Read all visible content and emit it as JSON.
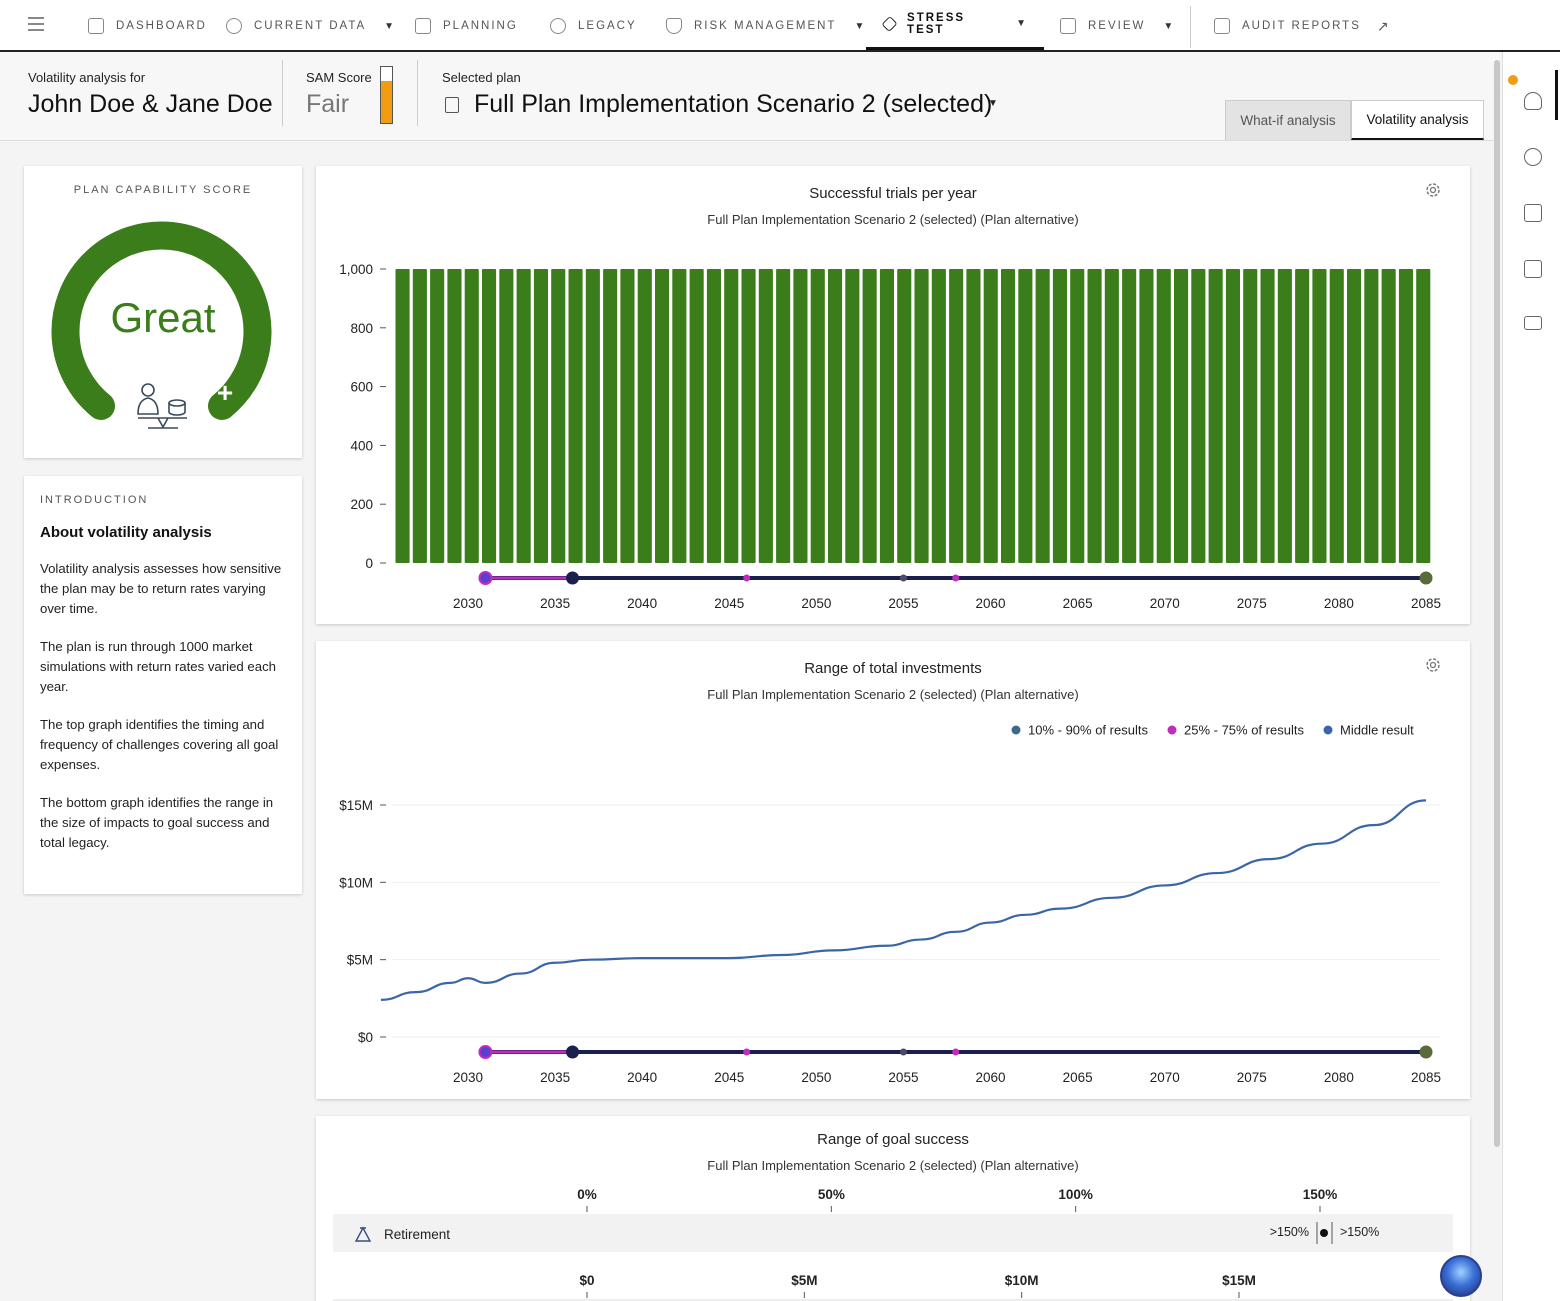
{
  "nav": {
    "items": [
      {
        "label": "DASHBOARD",
        "icon": "dashboard-icon",
        "caret": false
      },
      {
        "label": "CURRENT DATA",
        "icon": "people-icon",
        "caret": true
      },
      {
        "label": "PLANNING",
        "icon": "planning-icon",
        "caret": false
      },
      {
        "label": "LEGACY",
        "icon": "legacy-icon",
        "caret": false
      },
      {
        "label": "RISK MANAGEMENT",
        "icon": "shield-icon",
        "caret": true
      },
      {
        "label": "STRESS TEST",
        "icon": "diamond-icon",
        "caret": true,
        "active": true
      },
      {
        "label": "REVIEW",
        "icon": "review-icon",
        "caret": true
      },
      {
        "label": "AUDIT REPORTS",
        "icon": "audit-icon",
        "caret": false,
        "external": true
      }
    ]
  },
  "header": {
    "for_label": "Volatility analysis for",
    "client_name": "John Doe & Jane Doe",
    "sam_label": "SAM Score",
    "sam_value": "Fair",
    "sam_level": 0.75,
    "plan_label": "Selected plan",
    "plan_name": "Full Plan Implementation Scenario 2 (selected)",
    "tabs": [
      {
        "label": "What-if analysis",
        "active": false
      },
      {
        "label": "Volatility analysis",
        "active": true
      }
    ]
  },
  "score_card": {
    "eyebrow": "PLAN CAPABILITY SCORE",
    "score": "Great",
    "plus": "+",
    "color": "#3a7d1a"
  },
  "intro": {
    "eyebrow": "INTRODUCTION",
    "title": "About volatility analysis",
    "paragraphs": [
      "Volatility analysis assesses how sensitive the plan may be to return rates varying over time.",
      "The plan is run through 1000 market simulations with return rates varied each year.",
      "The top graph identifies the timing and frequency of challenges covering all goal expenses.",
      "The bottom graph identifies the range in the size of impacts to goal success and total legacy."
    ]
  },
  "chart_data": [
    {
      "type": "bar",
      "title": "Successful trials per year",
      "subtitle": "Full Plan Implementation Scenario 2 (selected) (Plan alternative)",
      "x_start": 2026,
      "x_end": 2085,
      "values_all": 1000,
      "ylim": [
        0,
        1000
      ],
      "yticks": [
        "0",
        "200",
        "400",
        "600",
        "800",
        "1,000"
      ],
      "xticks": [
        "2030",
        "2035",
        "2040",
        "2045",
        "2050",
        "2055",
        "2060",
        "2065",
        "2070",
        "2075",
        "2080",
        "2085"
      ],
      "color": "#3a7d1a"
    },
    {
      "type": "line",
      "title": "Range of total investments",
      "subtitle": "Full Plan Implementation Scenario 2 (selected) (Plan alternative)",
      "legend": [
        "10% - 90% of results",
        "25% - 75% of results",
        "Middle result"
      ],
      "legend_colors": [
        "#3d6b87",
        "#c02cc0",
        "#3a66a8"
      ],
      "yticks": [
        "$0",
        "$5M",
        "$10M",
        "$15M"
      ],
      "ylim": [
        0,
        15
      ],
      "xticks": [
        "2030",
        "2035",
        "2040",
        "2045",
        "2050",
        "2055",
        "2060",
        "2065",
        "2070",
        "2075",
        "2080",
        "2085"
      ],
      "series": [
        {
          "x": [
            2025,
            2027,
            2029,
            2030,
            2031,
            2033,
            2035,
            2037,
            2040,
            2043,
            2045,
            2048,
            2051,
            2054,
            2056,
            2058,
            2060,
            2062,
            2064,
            2067,
            2070,
            2073,
            2076,
            2079,
            2082,
            2085
          ],
          "y": [
            2.4,
            2.9,
            3.5,
            3.8,
            3.5,
            4.1,
            4.8,
            5.0,
            5.1,
            5.1,
            5.1,
            5.3,
            5.6,
            5.9,
            6.3,
            6.8,
            7.4,
            7.9,
            8.3,
            9.0,
            9.8,
            10.6,
            11.5,
            12.5,
            13.7,
            15.3
          ]
        }
      ]
    },
    {
      "type": "range",
      "title": "Range of goal success",
      "subtitle": "Full Plan Implementation Scenario 2 (selected) (Plan alternative)",
      "pct_ticks": [
        "0%",
        "50%",
        "100%",
        "150%"
      ],
      "dollar_ticks": [
        "$0",
        "$5M",
        "$10M",
        "$15M"
      ],
      "rows": [
        {
          "label": "Retirement",
          "low": ">150%",
          "high": ">150%"
        }
      ]
    }
  ],
  "timeline": {
    "color_line": "#1a1f4e",
    "color_pink": "#c02cc0",
    "color_end": "#5a6b3a"
  }
}
